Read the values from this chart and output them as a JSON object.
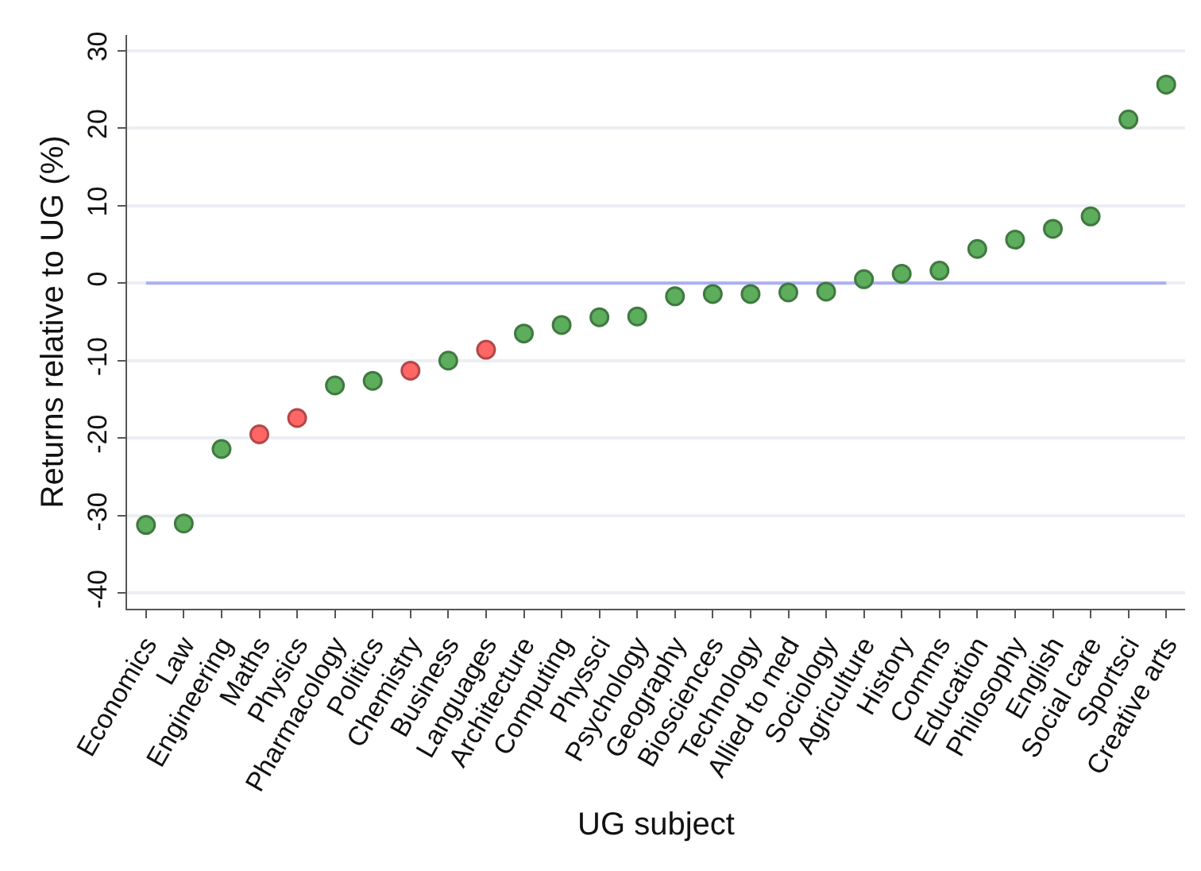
{
  "chart_data": {
    "type": "scatter",
    "xlabel": "UG subject",
    "ylabel": "Returns relative to UG (%)",
    "categories": [
      "Economics",
      "Law",
      "Engineering",
      "Maths",
      "Physics",
      "Pharmacology",
      "Politics",
      "Chemistry",
      "Business",
      "Languages",
      "Architecture",
      "Computing",
      "Physsci",
      "Psychology",
      "Geography",
      "Biosciences",
      "Technology",
      "Allied to med",
      "Sociology",
      "Agriculture",
      "History",
      "Comms",
      "Education",
      "Philosophy",
      "English",
      "Social care",
      "Sportsci",
      "Creative arts"
    ],
    "values": [
      -31.2,
      -31,
      -21.4,
      -19.5,
      -17.4,
      -13.2,
      -12.6,
      -11.3,
      -10,
      -8.6,
      -6.5,
      -5.4,
      -4.4,
      -4.3,
      -1.7,
      -1.4,
      -1.4,
      -1.2,
      -1.1,
      0.5,
      1.2,
      1.6,
      4.4,
      5.6,
      7,
      8.6,
      21.1,
      25.6
    ],
    "colors": [
      "#5cad5c",
      "#5cad5c",
      "#5cad5c",
      "#ff6666",
      "#ff6666",
      "#5cad5c",
      "#5cad5c",
      "#ff6666",
      "#5cad5c",
      "#ff6666",
      "#5cad5c",
      "#5cad5c",
      "#5cad5c",
      "#5cad5c",
      "#5cad5c",
      "#5cad5c",
      "#5cad5c",
      "#5cad5c",
      "#5cad5c",
      "#5cad5c",
      "#5cad5c",
      "#5cad5c",
      "#5cad5c",
      "#5cad5c",
      "#5cad5c",
      "#5cad5c",
      "#5cad5c",
      "#5cad5c"
    ],
    "ylim": [
      -42,
      32
    ],
    "yticks": [
      -40,
      -30,
      -20,
      -10,
      0,
      10,
      20,
      30
    ],
    "ref_lines": [
      {
        "axis": "y",
        "value": 0,
        "color": "#aab0f2"
      }
    ],
    "grid": "y",
    "marker": "circle"
  }
}
